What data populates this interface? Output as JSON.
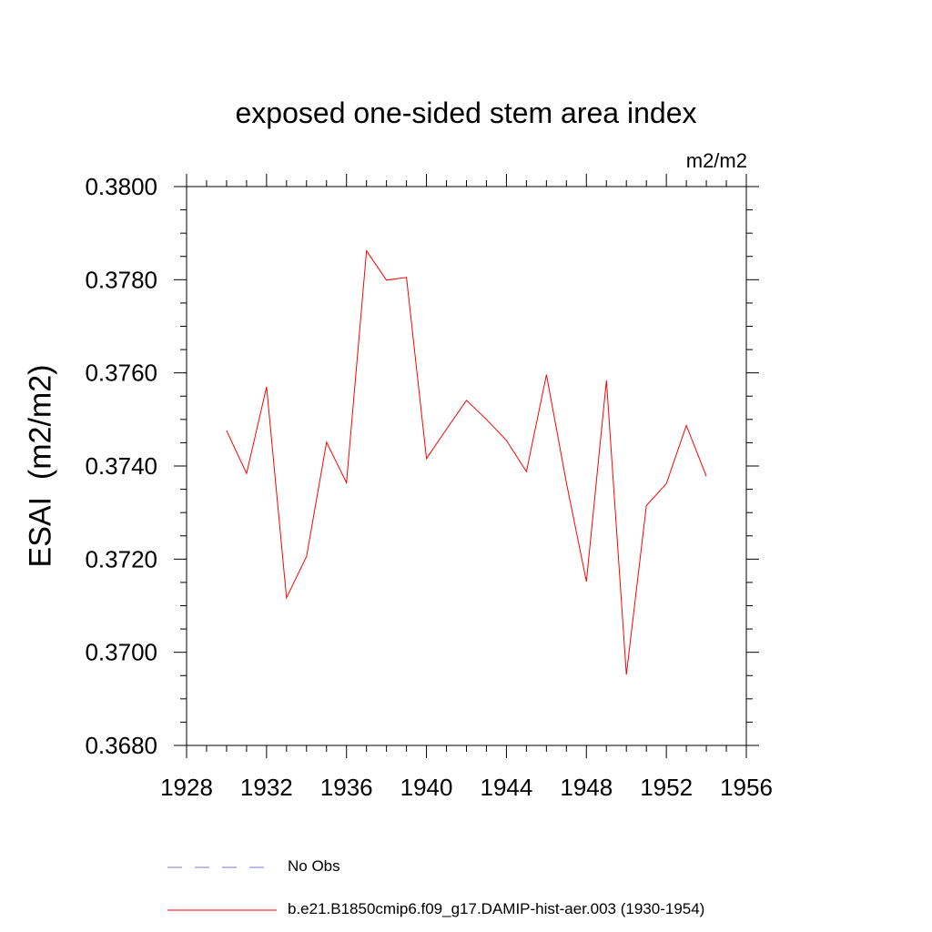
{
  "chart_data": {
    "type": "line",
    "title": "exposed one-sided stem area index",
    "units_label": "m2/m2",
    "ylabel": "ESAI  (m2/m2)",
    "xlabel": "",
    "xlim": [
      1928,
      1956
    ],
    "ylim": [
      0.368,
      0.38
    ],
    "x_ticks": [
      "1928",
      "1932",
      "1936",
      "1940",
      "1944",
      "1948",
      "1952",
      "1956"
    ],
    "y_ticks": [
      "0.3680",
      "0.3700",
      "0.3720",
      "0.3740",
      "0.3760",
      "0.3780",
      "0.3800"
    ],
    "grid": false,
    "legend_position": "bottom",
    "series": [
      {
        "name": "b.e21.B1850cmip6.f09_g17.DAMIP-hist-aer.003 (1930-1954)",
        "color": "#ff0000",
        "style": "solid",
        "x": [
          1930,
          1931,
          1932,
          1933,
          1934,
          1935,
          1936,
          1937,
          1938,
          1939,
          1940,
          1941,
          1942,
          1943,
          1944,
          1945,
          1946,
          1947,
          1948,
          1949,
          1950,
          1951,
          1952,
          1953,
          1954
        ],
        "y": [
          0.37476,
          0.37384,
          0.3757,
          0.37117,
          0.37206,
          0.37451,
          0.37364,
          0.37862,
          0.37799,
          0.37805,
          0.37416,
          0.37479,
          0.37541,
          0.375,
          0.37455,
          0.37388,
          0.37596,
          0.37364,
          0.37152,
          0.37584,
          0.36952,
          0.37315,
          0.37362,
          0.37487,
          0.37378
        ]
      }
    ],
    "legend": [
      {
        "label": "No Obs",
        "color": "#7777cc",
        "style": "dashed"
      },
      {
        "label": "b.e21.B1850cmip6.f09_g17.DAMIP-hist-aer.003 (1930-1954)",
        "color": "#ff0000",
        "style": "solid"
      }
    ]
  }
}
